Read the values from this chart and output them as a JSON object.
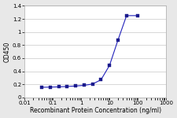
{
  "x_actual": [
    0.04,
    0.08,
    0.16,
    0.31,
    0.62,
    1.25,
    2.5,
    5,
    10,
    20,
    40,
    100
  ],
  "y_actual": [
    0.155,
    0.158,
    0.162,
    0.168,
    0.175,
    0.185,
    0.205,
    0.27,
    0.49,
    0.88,
    1.25,
    1.25
  ],
  "line_color": "#2222bb",
  "marker_color": "#1a1a8c",
  "xlim": [
    0.01,
    1000
  ],
  "ylim": [
    0,
    1.4
  ],
  "yticks": [
    0,
    0.2,
    0.4,
    0.6,
    0.8,
    1.0,
    1.2,
    1.4
  ],
  "xtick_labels": [
    "0.01",
    "0.1",
    "1",
    "10",
    "100",
    "1000"
  ],
  "xtick_vals": [
    0.01,
    0.1,
    1,
    10,
    100,
    1000
  ],
  "xlabel": "Recombinant Protein Concentration (ng/ml)",
  "ylabel": "OD450",
  "bg_color": "#e8e8e8",
  "plot_bg_color": "#ffffff",
  "grid_color": "#c8c8c8",
  "label_fontsize": 5.5,
  "tick_fontsize": 5.0
}
